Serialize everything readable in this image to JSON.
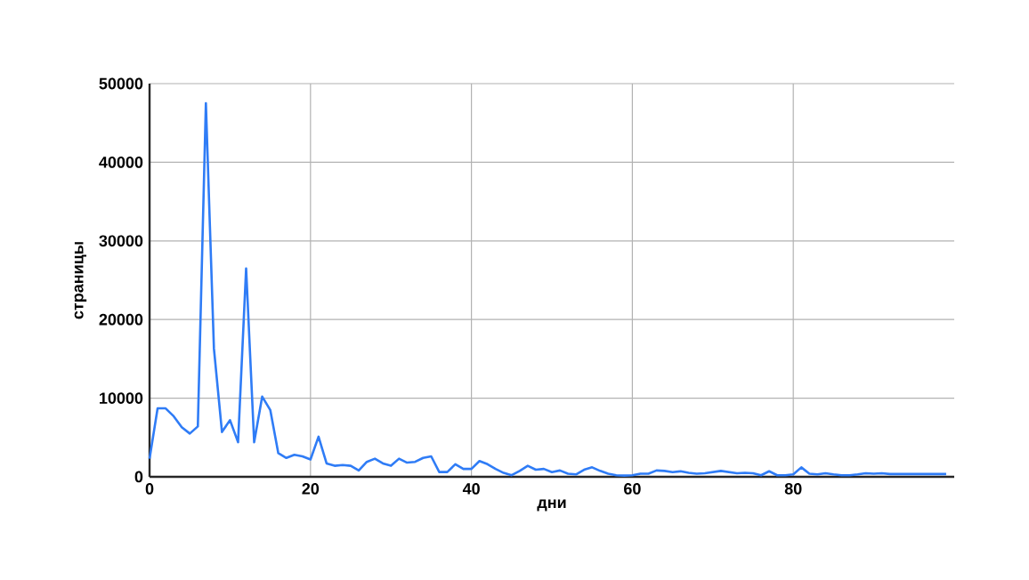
{
  "chart_data": {
    "type": "line",
    "xlabel": "дни",
    "ylabel": "страницы",
    "x": [
      0,
      1,
      2,
      3,
      4,
      5,
      6,
      7,
      8,
      9,
      10,
      11,
      12,
      13,
      14,
      15,
      16,
      17,
      18,
      19,
      20,
      21,
      22,
      23,
      24,
      25,
      26,
      27,
      28,
      29,
      30,
      31,
      32,
      33,
      34,
      35,
      36,
      37,
      38,
      39,
      40,
      41,
      42,
      43,
      44,
      45,
      46,
      47,
      48,
      49,
      50,
      51,
      52,
      53,
      54,
      55,
      56,
      57,
      58,
      59,
      60,
      61,
      62,
      63,
      64,
      65,
      66,
      67,
      68,
      69,
      70,
      71,
      72,
      73,
      74,
      75,
      76,
      77,
      78,
      79,
      80,
      81,
      82,
      83,
      84,
      85,
      86,
      87,
      88,
      89,
      90,
      91,
      92,
      93,
      94,
      95,
      96,
      97,
      98,
      99
    ],
    "series": [
      {
        "color": "#2f7cf6",
        "values": [
          2300,
          8700,
          8700,
          7700,
          6300,
          5500,
          6400,
          47500,
          16300,
          5700,
          7200,
          4400,
          26500,
          4400,
          10200,
          8500,
          3000,
          2400,
          2800,
          2600,
          2200,
          5100,
          1700,
          1400,
          1500,
          1400,
          800,
          1900,
          2300,
          1700,
          1400,
          2300,
          1800,
          1900,
          2400,
          2600,
          600,
          600,
          1600,
          1000,
          1000,
          2000,
          1600,
          1000,
          500,
          200,
          750,
          1400,
          900,
          1000,
          600,
          800,
          400,
          300,
          900,
          1200,
          750,
          400,
          200,
          150,
          200,
          400,
          400,
          800,
          750,
          600,
          700,
          500,
          400,
          450,
          600,
          750,
          600,
          450,
          500,
          450,
          200,
          700,
          200,
          200,
          300,
          1200,
          400,
          300,
          450,
          300,
          200,
          200,
          300,
          450,
          400,
          450,
          350,
          350,
          350,
          350,
          350,
          350,
          350,
          350
        ]
      }
    ],
    "xlim": [
      0,
      100
    ],
    "ylim": [
      0,
      50000
    ],
    "xticks": [
      0,
      20,
      40,
      60,
      80
    ],
    "yticks": [
      0,
      10000,
      20000,
      30000,
      40000,
      50000
    ],
    "grid": true,
    "marker": "none",
    "line_style": "solid"
  }
}
